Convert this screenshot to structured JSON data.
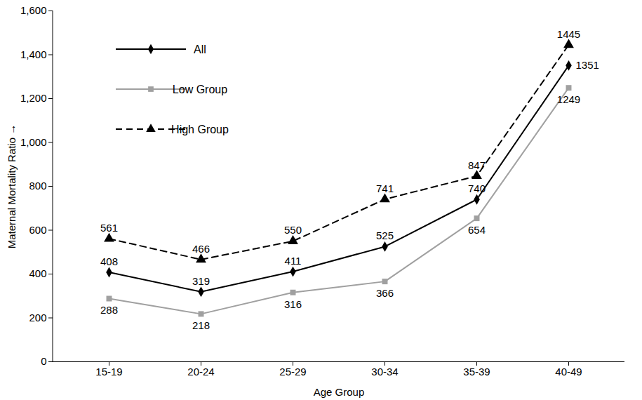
{
  "chart_data": {
    "type": "line",
    "x_label": "Age Group",
    "y_label": "Maternal Mortality Ratio",
    "categories": [
      "15-19",
      "20-24",
      "25-29",
      "30-34",
      "35-39",
      "40-49"
    ],
    "series": [
      {
        "name": "All",
        "color": "#000000",
        "marker": "diamond",
        "line_style": "solid",
        "values": [
          408,
          319,
          411,
          525,
          740,
          1351
        ]
      },
      {
        "name": "Low Group",
        "color": "#a0a0a0",
        "marker": "square",
        "line_style": "solid",
        "values": [
          288,
          218,
          316,
          366,
          654,
          1249
        ]
      },
      {
        "name": "High Group",
        "color": "#000000",
        "marker": "triangle",
        "line_style": "dashed",
        "values": [
          561,
          466,
          550,
          741,
          847,
          1445
        ]
      }
    ],
    "ylim": [
      0,
      1600
    ],
    "yticks": [
      0,
      200,
      400,
      600,
      800,
      {
        "value": 1000,
        "label": "1,000"
      },
      {
        "value": 1200,
        "label": "1,200"
      },
      {
        "value": 1400,
        "label": "1,400"
      },
      {
        "value": 1600,
        "label": "1,600"
      }
    ],
    "grid": false,
    "legend": "upper left",
    "data_labels": true
  }
}
